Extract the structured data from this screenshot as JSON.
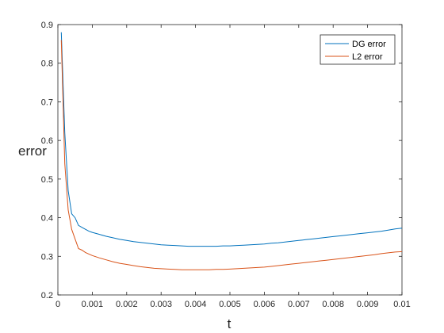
{
  "chart_data": {
    "type": "line",
    "xlabel": "t",
    "ylabel": "error",
    "xlim": [
      0,
      0.01
    ],
    "ylim": [
      0.2,
      0.9
    ],
    "xticks": [
      "0",
      "0.001",
      "0.002",
      "0.003",
      "0.004",
      "0.005",
      "0.006",
      "0.007",
      "0.008",
      "0.009",
      "0.01"
    ],
    "yticks": [
      "0.2",
      "0.3",
      "0.4",
      "0.5",
      "0.6",
      "0.7",
      "0.8",
      "0.9"
    ],
    "legend_position": "top-right",
    "grid": false,
    "series": [
      {
        "name": "DG error",
        "color": "#0072BD",
        "x": [
          0.0001,
          0.0002,
          0.0003,
          0.0004,
          0.0005,
          0.0006,
          0.0007,
          0.0008,
          0.0009,
          0.001,
          0.0012,
          0.0014,
          0.0016,
          0.0018,
          0.002,
          0.0022,
          0.0024,
          0.0026,
          0.0028,
          0.003,
          0.0032,
          0.0034,
          0.0036,
          0.0038,
          0.004,
          0.0042,
          0.0044,
          0.0046,
          0.0048,
          0.005,
          0.0052,
          0.0054,
          0.0056,
          0.0058,
          0.006,
          0.0062,
          0.0064,
          0.0066,
          0.0068,
          0.007,
          0.0072,
          0.0074,
          0.0076,
          0.0078,
          0.008,
          0.0082,
          0.0084,
          0.0086,
          0.0088,
          0.009,
          0.0092,
          0.0094,
          0.0096,
          0.0098,
          0.01
        ],
        "y": [
          0.88,
          0.62,
          0.47,
          0.41,
          0.4,
          0.38,
          0.375,
          0.37,
          0.365,
          0.362,
          0.357,
          0.352,
          0.348,
          0.344,
          0.341,
          0.338,
          0.336,
          0.334,
          0.332,
          0.33,
          0.329,
          0.328,
          0.327,
          0.326,
          0.326,
          0.326,
          0.326,
          0.326,
          0.327,
          0.327,
          0.328,
          0.329,
          0.33,
          0.331,
          0.332,
          0.334,
          0.335,
          0.337,
          0.339,
          0.341,
          0.343,
          0.345,
          0.347,
          0.349,
          0.351,
          0.353,
          0.355,
          0.357,
          0.359,
          0.361,
          0.363,
          0.365,
          0.368,
          0.371,
          0.373
        ]
      },
      {
        "name": "L2 error",
        "color": "#D95319",
        "x": [
          0.0001,
          0.0002,
          0.0003,
          0.0004,
          0.0005,
          0.0006,
          0.0007,
          0.0008,
          0.0009,
          0.001,
          0.0012,
          0.0014,
          0.0016,
          0.0018,
          0.002,
          0.0022,
          0.0024,
          0.0026,
          0.0028,
          0.003,
          0.0032,
          0.0034,
          0.0036,
          0.0038,
          0.004,
          0.0042,
          0.0044,
          0.0046,
          0.0048,
          0.005,
          0.0052,
          0.0054,
          0.0056,
          0.0058,
          0.006,
          0.0062,
          0.0064,
          0.0066,
          0.0068,
          0.007,
          0.0072,
          0.0074,
          0.0076,
          0.0078,
          0.008,
          0.0082,
          0.0084,
          0.0086,
          0.0088,
          0.009,
          0.0092,
          0.0094,
          0.0096,
          0.0098,
          0.01
        ],
        "y": [
          0.86,
          0.54,
          0.42,
          0.37,
          0.345,
          0.32,
          0.316,
          0.31,
          0.306,
          0.302,
          0.296,
          0.291,
          0.286,
          0.282,
          0.279,
          0.276,
          0.273,
          0.271,
          0.269,
          0.268,
          0.267,
          0.266,
          0.265,
          0.265,
          0.265,
          0.265,
          0.265,
          0.266,
          0.266,
          0.267,
          0.268,
          0.269,
          0.27,
          0.271,
          0.272,
          0.274,
          0.276,
          0.278,
          0.28,
          0.282,
          0.284,
          0.286,
          0.288,
          0.29,
          0.292,
          0.294,
          0.296,
          0.298,
          0.3,
          0.302,
          0.304,
          0.307,
          0.309,
          0.311,
          0.312
        ]
      }
    ]
  }
}
